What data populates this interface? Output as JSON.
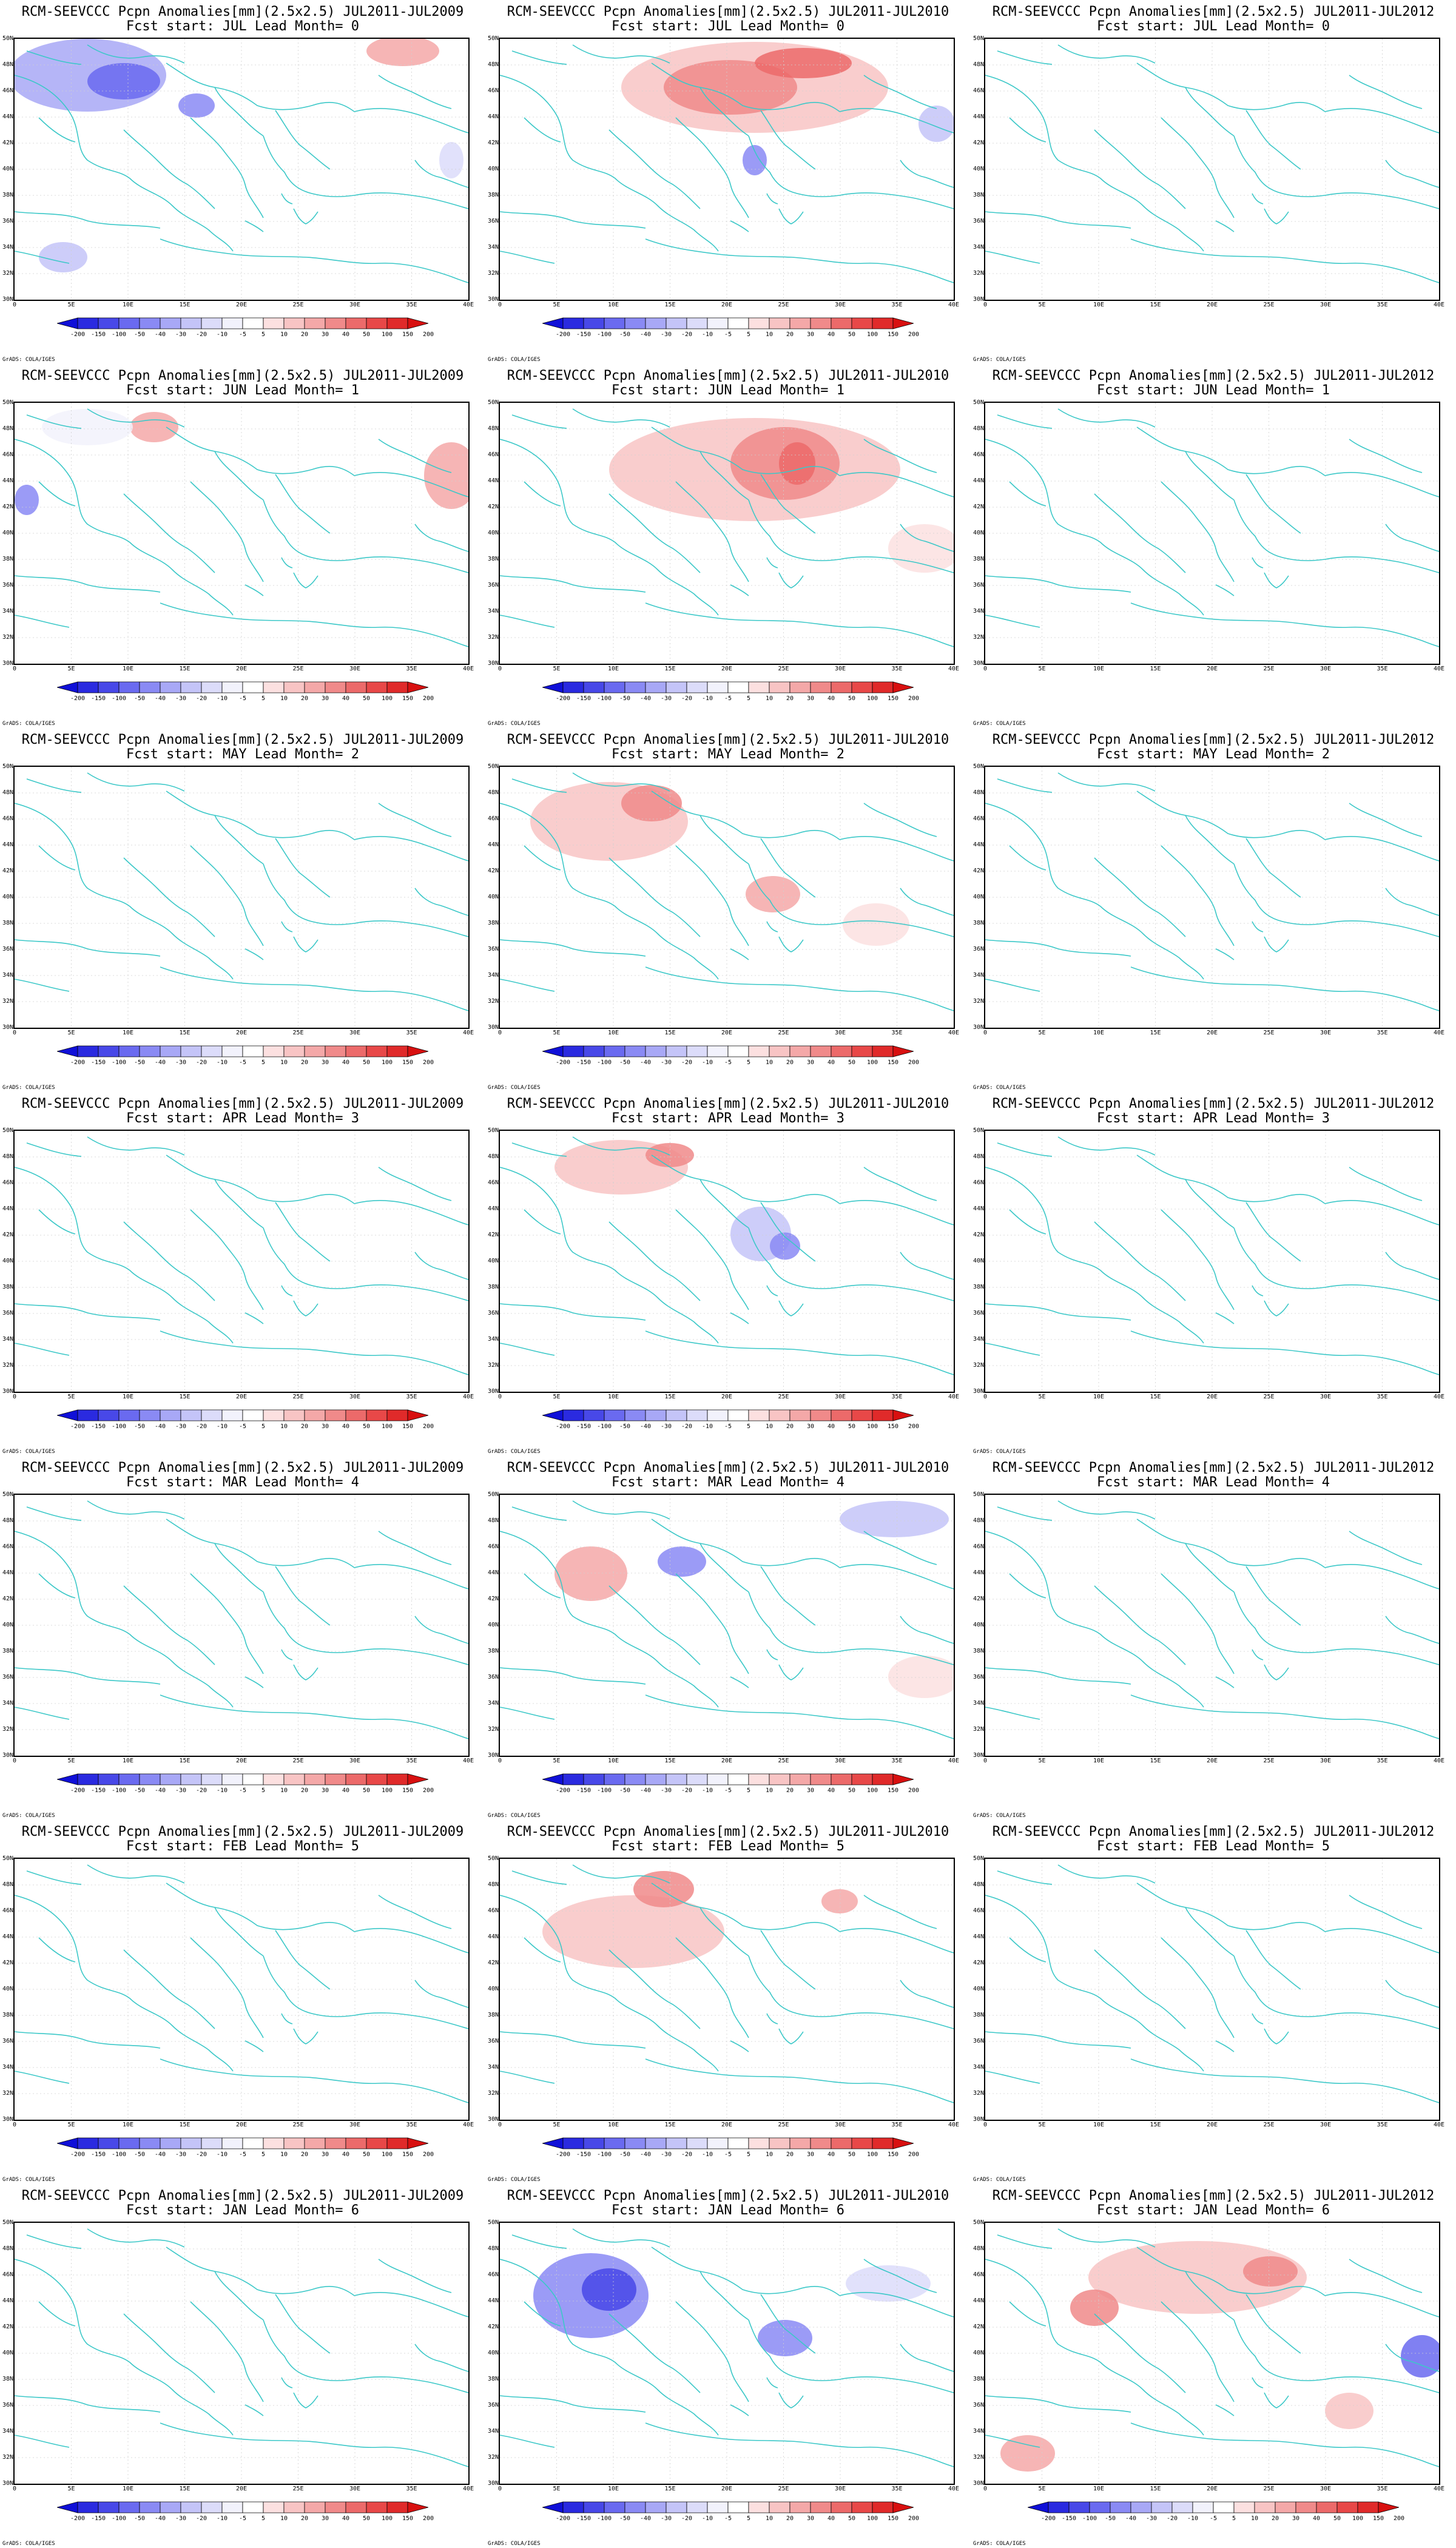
{
  "title_prefix": "RCM-SEEVCCC Pcpn Anomalies[mm](2.5x2.5)",
  "comparisons": [
    "JUL2011-JUL2009",
    "JUL2011-JUL2010",
    "JUL2011-JUL2012"
  ],
  "rows": [
    {
      "month": "JUL",
      "lead": "0"
    },
    {
      "month": "JUN",
      "lead": "1"
    },
    {
      "month": "MAY",
      "lead": "2"
    },
    {
      "month": "APR",
      "lead": "3"
    },
    {
      "month": "MAR",
      "lead": "4"
    },
    {
      "month": "FEB",
      "lead": "5"
    },
    {
      "month": "JAN",
      "lead": "6"
    }
  ],
  "axes": {
    "lat_labels": [
      "50N",
      "48N",
      "46N",
      "44N",
      "42N",
      "40N",
      "38N",
      "36N",
      "34N",
      "32N",
      "30N"
    ],
    "lon_labels": [
      "0",
      "5E",
      "10E",
      "15E",
      "20E",
      "25E",
      "30E",
      "35E",
      "40E"
    ]
  },
  "colorbar": {
    "levels": [
      "-200",
      "-150",
      "-100",
      "-50",
      "-40",
      "-30",
      "-20",
      "-10",
      "-5",
      "5",
      "10",
      "20",
      "30",
      "40",
      "50",
      "100",
      "150",
      "200"
    ],
    "colors": [
      "#1010d8",
      "#2a2ae0",
      "#4848e8",
      "#6a6af0",
      "#8a8af4",
      "#a8a8f6",
      "#c4c4f8",
      "#dcdcfa",
      "#f2f2fc",
      "#ffffff",
      "#fce0e0",
      "#f8c4c4",
      "#f4a8a8",
      "#f08a8a",
      "#ec6a6a",
      "#e84848",
      "#e02a2a",
      "#d81010"
    ]
  },
  "grads_credit": "GrADS: COLA/IGES",
  "colors": {
    "coast": "#3cc8c8"
  }
}
